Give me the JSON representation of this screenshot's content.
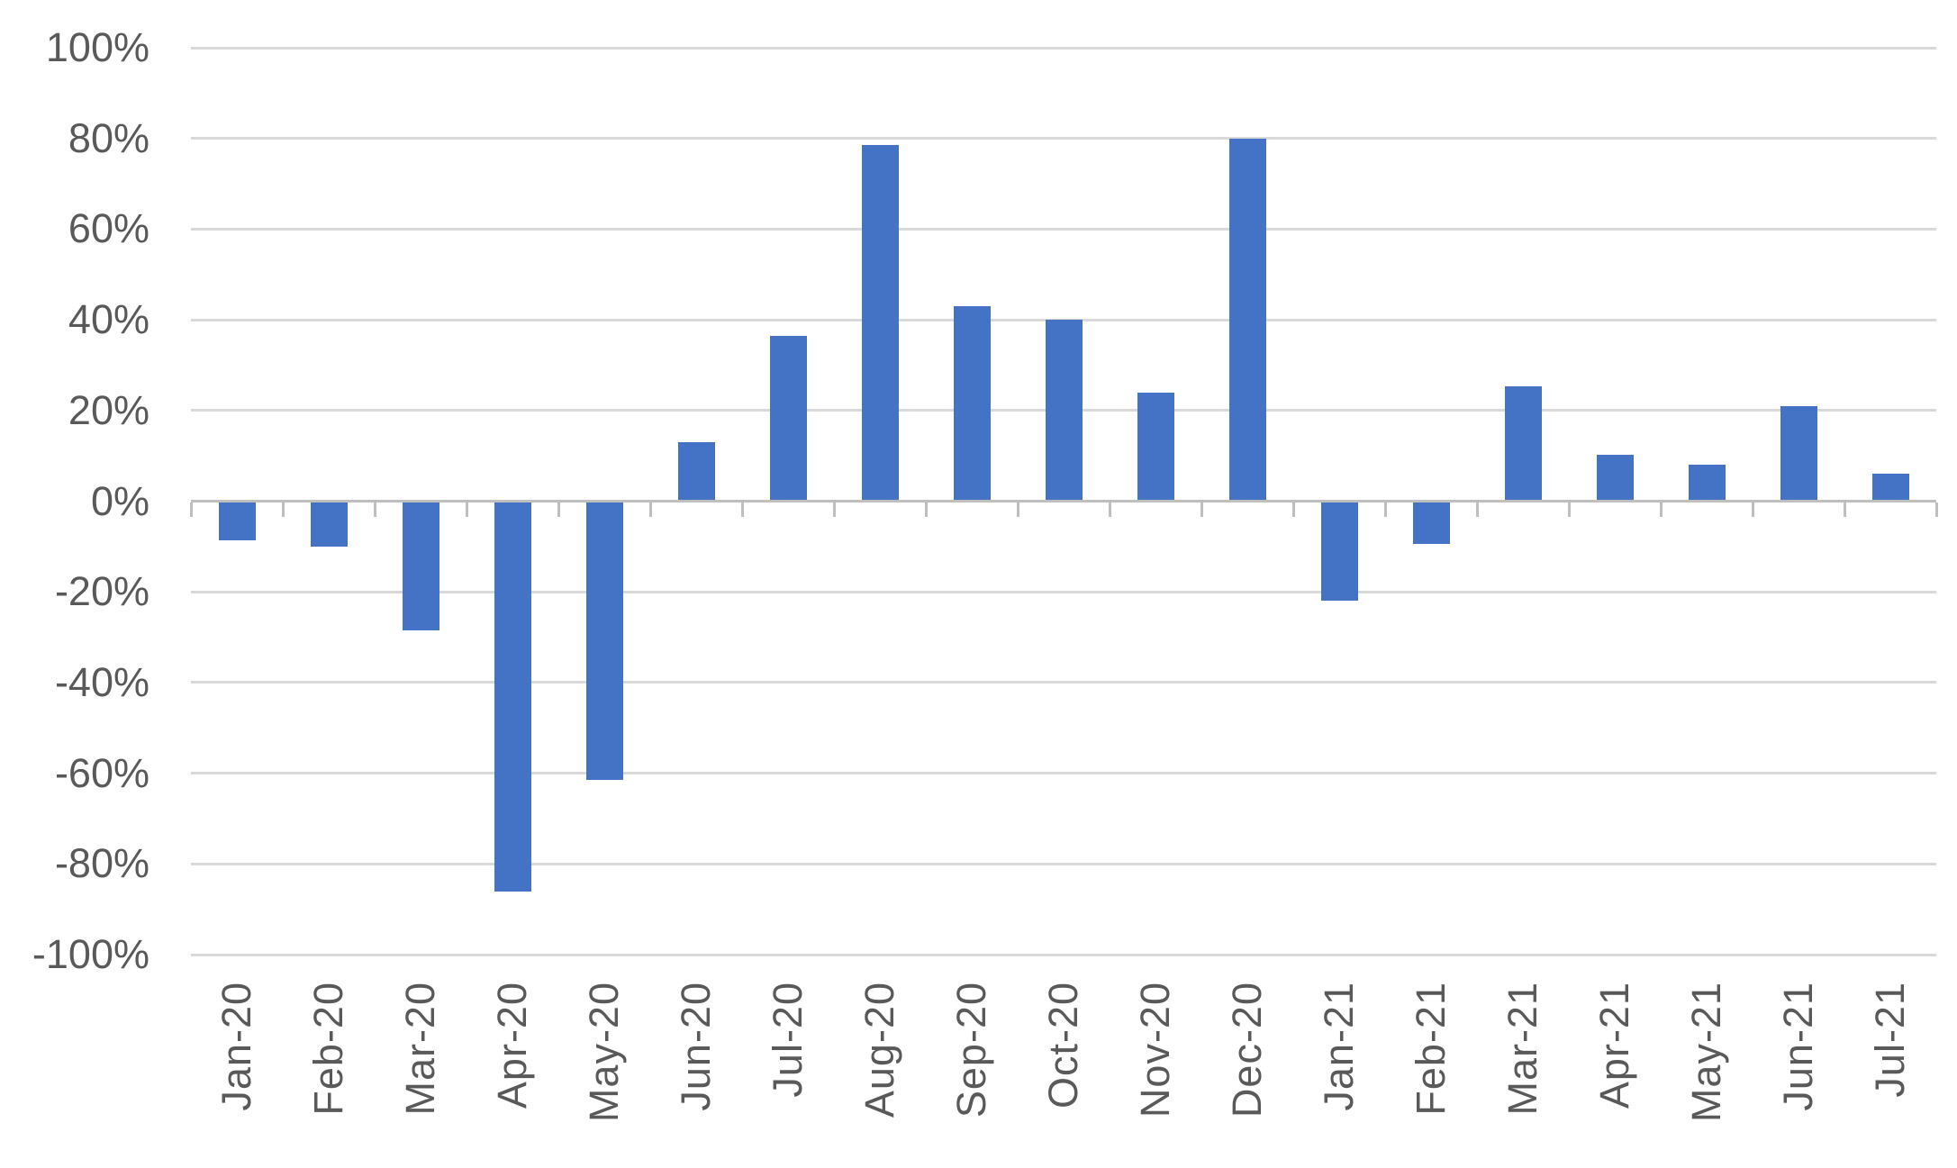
{
  "chart_data": {
    "type": "bar",
    "title": "",
    "xlabel": "",
    "ylabel": "",
    "categories": [
      "Jan-20",
      "Feb-20",
      "Mar-20",
      "Apr-20",
      "May-20",
      "Jun-20",
      "Jul-20",
      "Aug-20",
      "Sep-20",
      "Oct-20",
      "Nov-20",
      "Dec-20",
      "Jan-21",
      "Feb-21",
      "Mar-21",
      "Apr-21",
      "May-21",
      "Jun-21",
      "Jul-21"
    ],
    "values": [
      -8.7,
      -10,
      -28.5,
      -86,
      -61.5,
      13,
      36.5,
      78.5,
      43,
      40,
      24,
      80,
      -22,
      -9.5,
      25.3,
      10.2,
      8,
      21,
      6
    ],
    "value_unit": "percent",
    "y_axis": {
      "min": -100,
      "max": 100,
      "step": 20,
      "tick_labels": [
        "100%",
        "80%",
        "60%",
        "40%",
        "20%",
        "0%",
        "-20%",
        "-40%",
        "-60%",
        "-80%",
        "-100%"
      ]
    },
    "x_axis": {
      "label_rotation_degrees": 90,
      "ticks_between_categories": true
    },
    "grid": true,
    "legend": false,
    "single_series": true
  },
  "colors": {
    "bar": "#4472C4",
    "gridline": "#D9D9D9",
    "axis_line": "#BFBFBF",
    "label_text": "#595959",
    "background": "#FFFFFF"
  }
}
